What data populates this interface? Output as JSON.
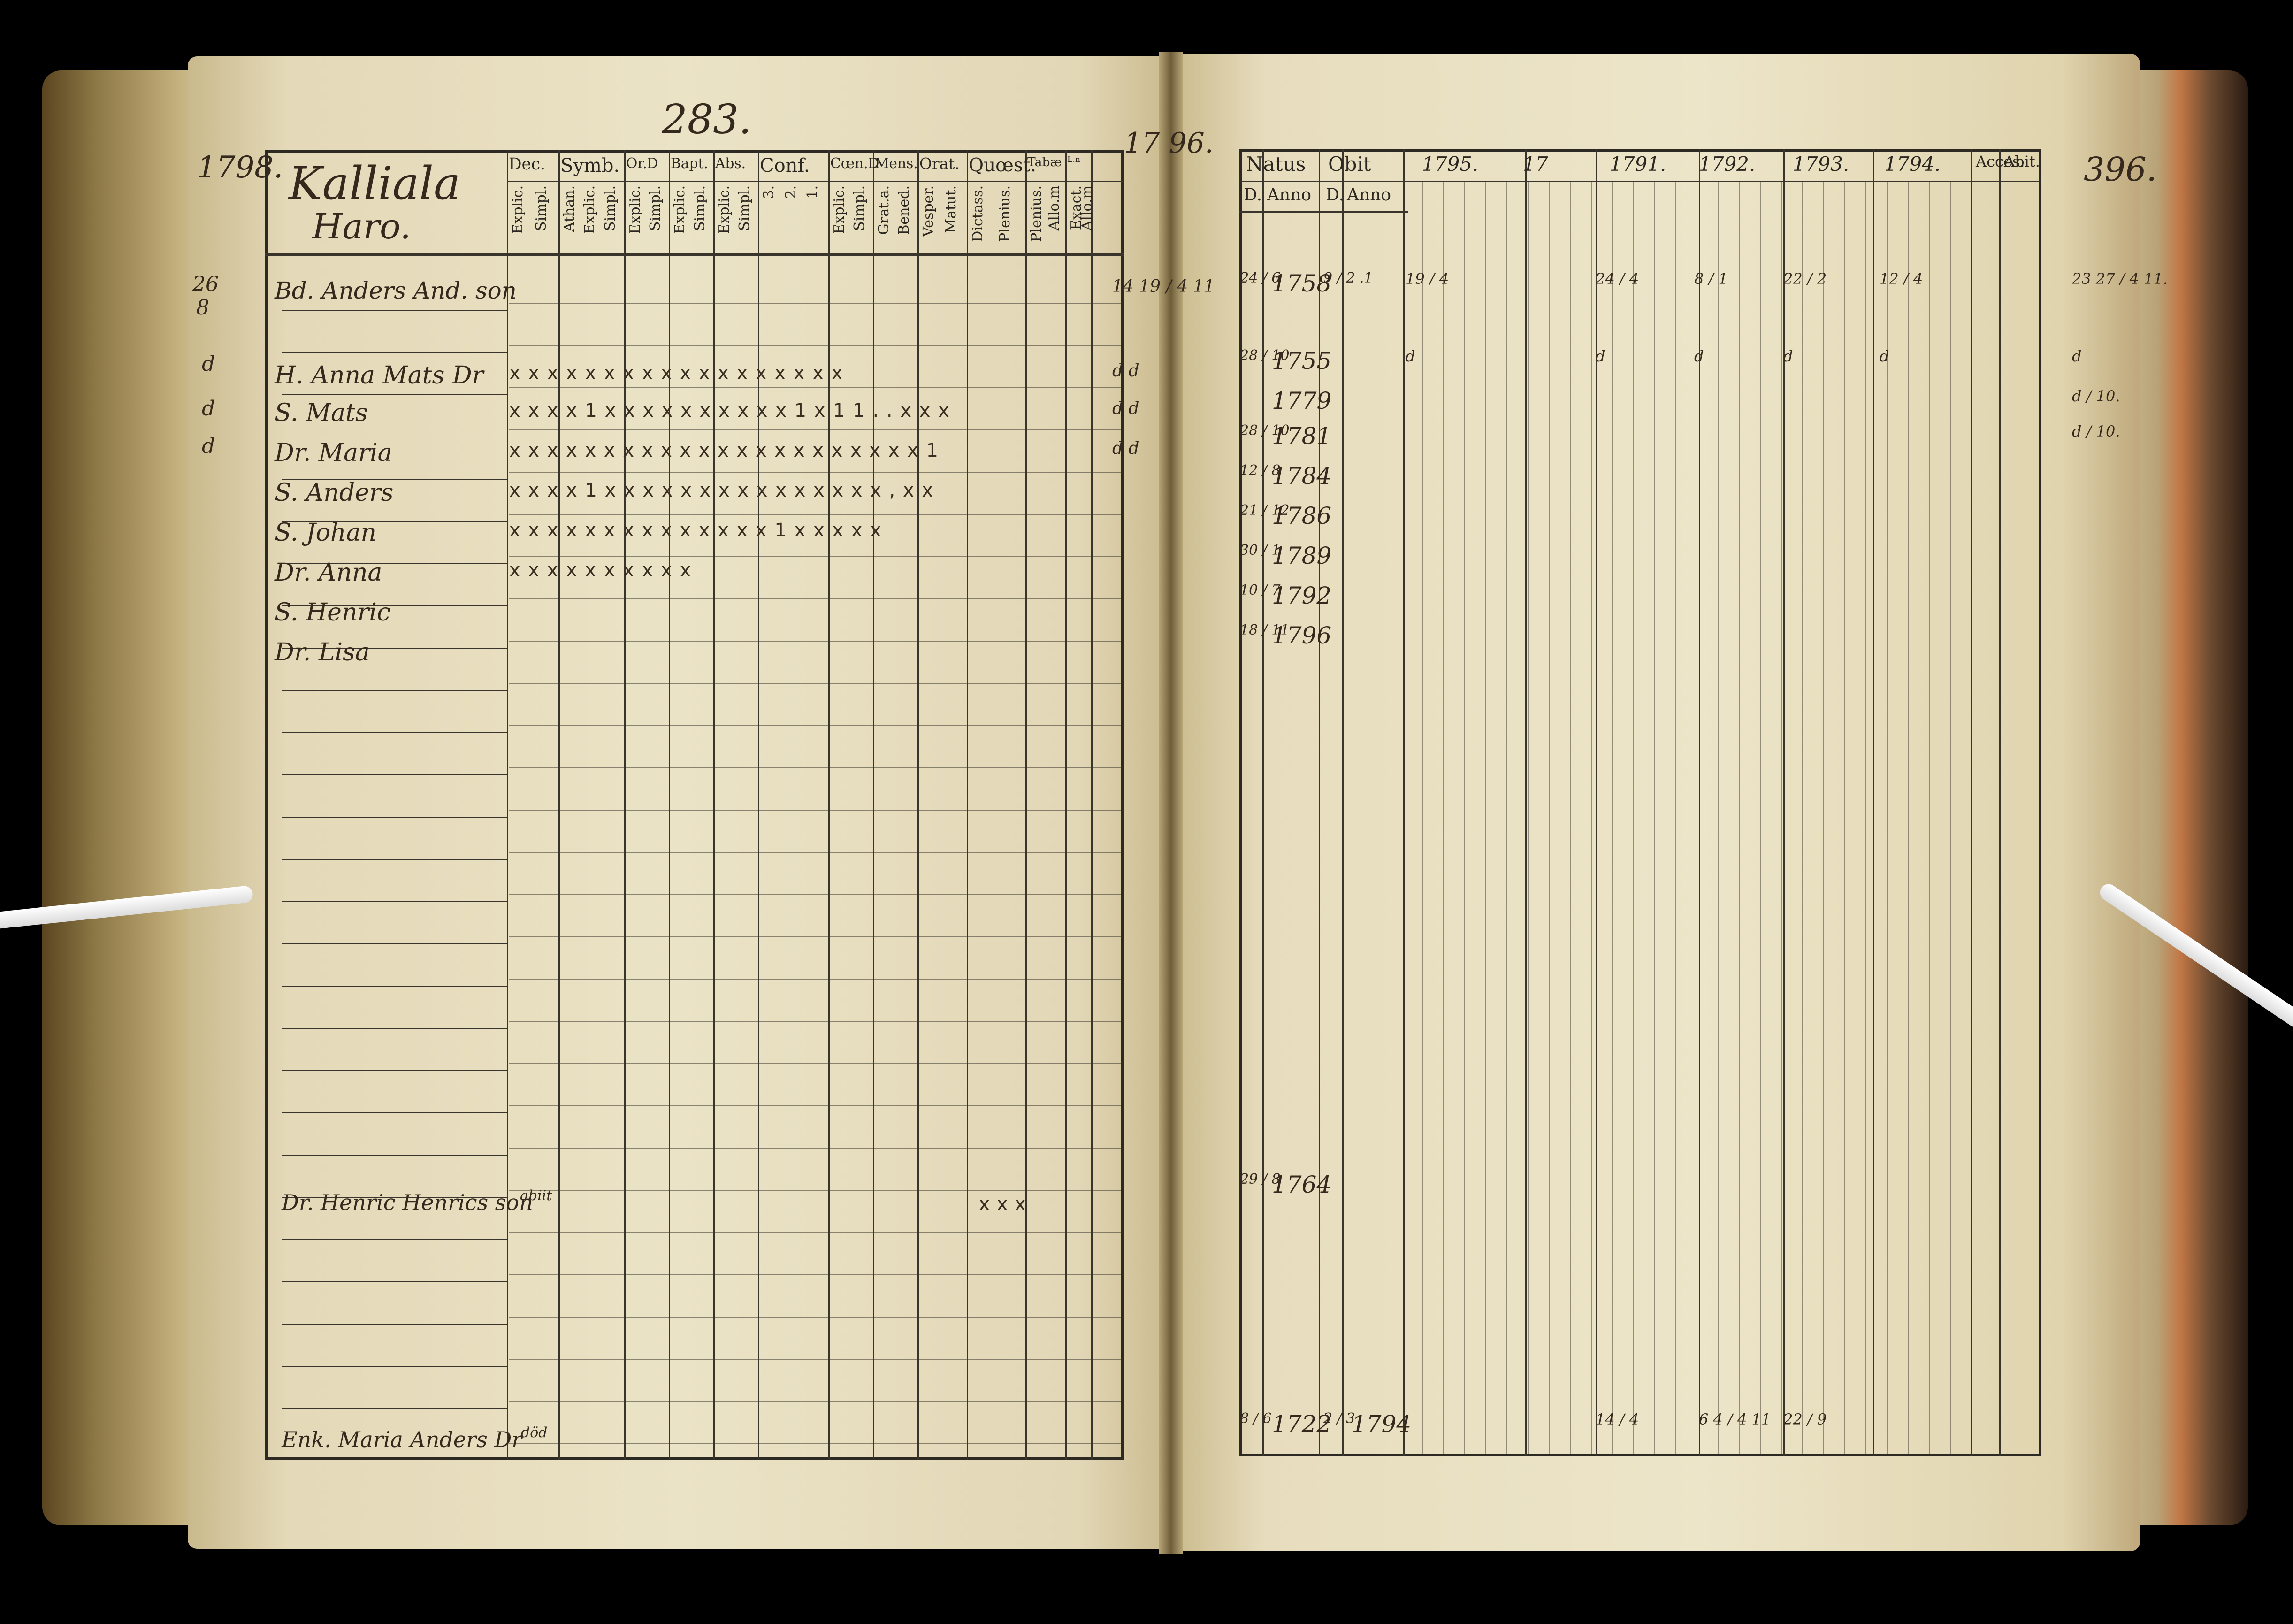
{
  "header": {
    "page_number": "283.",
    "year_left": "1798.",
    "year_right_top": "17 96.",
    "page_right_number": "396."
  },
  "left_page": {
    "village_title": "Kalliala",
    "farm_name": "Haro.",
    "column_heads": [
      {
        "top": "Dec.",
        "sub": [
          "Explic.",
          "Simpl."
        ]
      },
      {
        "top": "Symb.",
        "sub": [
          "Athan.",
          "Explic.",
          "Simpl."
        ]
      },
      {
        "top": "Or.D",
        "sub": [
          "Explic.",
          "Simpl."
        ]
      },
      {
        "top": "Bapt.",
        "sub": [
          "Explic.",
          "Simpl."
        ]
      },
      {
        "top": "Abs.",
        "sub": [
          "Explic.",
          "Simpl."
        ]
      },
      {
        "top": "Conf.",
        "sub": [
          "3.",
          "2.",
          "1."
        ]
      },
      {
        "top": "Cœn.D",
        "sub": [
          "Explic.",
          "Simpl."
        ]
      },
      {
        "top": "Mens.",
        "sub": [
          "Grat.a.",
          "Bened."
        ]
      },
      {
        "top": "Orat.",
        "sub": [
          "Vesper.",
          "Matut."
        ]
      },
      {
        "top": "Quœst.",
        "sub": [
          "Dictass.",
          "Plenius."
        ]
      },
      {
        "top": "Tabæ",
        "sub": [
          "Plenius.",
          "Allo.m"
        ]
      },
      {
        "top": "L.n",
        "sub": [
          "Exact.",
          "Allo.m"
        ]
      }
    ],
    "margin_left": [
      "26",
      "8"
    ],
    "persons": [
      {
        "name": "Bd. Anders And. son",
        "marks": "",
        "right_margin": "14 19 / 4 11"
      },
      {
        "name": "H. Anna Mats Dr",
        "marks": "x x   x x   x x x   x x x   x x x   x x x   x x",
        "right_margin": "d d"
      },
      {
        "name": "S. Mats",
        "marks": "x x   x x 1   x x   x x   x x   x x   x x 1   x 1   1 . .   x   x x",
        "right_margin": "d d"
      },
      {
        "name": "Dr. Maria",
        "marks": "x x   x x x   x x   x x   x x   x x   x x   x x   x x   x x   x 1",
        "right_margin": "d d"
      },
      {
        "name": "S. Anders",
        "marks": "x x   x x 1   x x   x x   x x   x x x   x x   x x   x x   ,   x   x",
        "right_margin": ""
      },
      {
        "name": "S. Johan",
        "marks": "x x   x x   x x   x x   x x   x x x   x 1   x x   x x       x",
        "right_margin": ""
      },
      {
        "name": "Dr. Anna",
        "marks": "x   x   x   x   x   x   x   x   x       x",
        "right_margin": ""
      },
      {
        "name": "S. Henric",
        "marks": "",
        "right_margin": ""
      },
      {
        "name": "Dr. Lisa",
        "marks": "",
        "right_margin": ""
      }
    ],
    "lower_entries": [
      {
        "name": "Dr. Henric Henrics son",
        "note": "abiit",
        "marks": "x x   x"
      },
      {
        "name": "Enk. Maria Anders Dr",
        "note": "död",
        "marks": ""
      }
    ]
  },
  "right_page": {
    "column_heads": [
      "Natus",
      "Obit",
      "1795.",
      "17",
      "1791.",
      "1792.",
      "1793.",
      "1794.",
      "Acces.",
      "Abit."
    ],
    "sub_heads": [
      "D.",
      "Anno",
      "D.",
      "Anno"
    ],
    "rows": [
      {
        "natus_d": "24 / 6",
        "natus_anno": "1758",
        "obit": "9 / 2 .1",
        "y1795": "19 / 4",
        "y1791": "24 / 4",
        "y1792": "8 / 1",
        "y1793": "22 / 2",
        "y1794": "12 / 4",
        "acces": "23 27 / 4 11."
      },
      {
        "natus_d": "28 / 10",
        "natus_anno": "1755",
        "obit": "",
        "y1795": "d",
        "y1791": "d",
        "y1792": "d",
        "y1793": "d",
        "y1794": "d",
        "acces": "d"
      },
      {
        "natus_d": "",
        "natus_anno": "1779",
        "obit": "",
        "y1795": "",
        "y1791": "",
        "y1792": "",
        "y1793": "",
        "y1794": "",
        "acces": "d / 10."
      },
      {
        "natus_d": "28 / 10",
        "natus_anno": "1781",
        "obit": "",
        "y1795": "",
        "y1791": "",
        "y1792": "",
        "y1793": "",
        "y1794": "",
        "acces": "d / 10."
      },
      {
        "natus_d": "12 / 8",
        "natus_anno": "1784",
        "obit": "",
        "y1795": "",
        "y1791": "",
        "y1792": "",
        "y1793": "",
        "y1794": "",
        "acces": ""
      },
      {
        "natus_d": "21 / 12",
        "natus_anno": "1786",
        "obit": "",
        "y1795": "",
        "y1791": "",
        "y1792": "",
        "y1793": "",
        "y1794": "",
        "acces": ""
      },
      {
        "natus_d": "30 / 1",
        "natus_anno": "1789",
        "obit": "",
        "y1795": "",
        "y1791": "",
        "y1792": "",
        "y1793": "",
        "y1794": "",
        "acces": ""
      },
      {
        "natus_d": "10 / 7",
        "natus_anno": "1792",
        "obit": "",
        "y1795": "",
        "y1791": "",
        "y1792": "",
        "y1793": "",
        "y1794": "",
        "acces": ""
      },
      {
        "natus_d": "18 / 11",
        "natus_anno": "1796",
        "obit": "",
        "y1795": "",
        "y1791": "",
        "y1792": "",
        "y1793": "",
        "y1794": "",
        "acces": ""
      }
    ],
    "lower_rows": [
      {
        "natus_d": "29 / 8",
        "natus_anno": "1764"
      },
      {
        "natus_d": "8 / 6",
        "natus_anno": "1722",
        "obit_d": "2 / 3",
        "obit_anno": "1794",
        "y1791": "14 / 4",
        "y1792": "6 4 / 4 11",
        "y1793": "22 / 9"
      }
    ]
  },
  "colors": {
    "ink": "#2b2720",
    "paper": "#ebe3c6",
    "background": "#000000"
  }
}
